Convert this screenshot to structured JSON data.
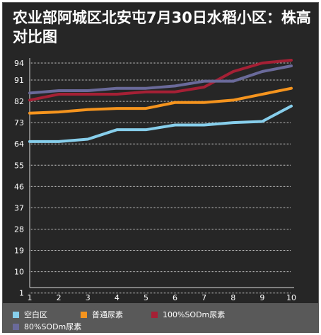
{
  "chart_data": {
    "type": "line",
    "title": "农业部阿城区北安屯7月30日水稻小区：株高对比图",
    "xlabel": "",
    "ylabel": "",
    "x": [
      1,
      2,
      3,
      4,
      5,
      6,
      7,
      8,
      9,
      10
    ],
    "y_ticks": [
      94,
      91,
      82,
      73,
      64,
      55,
      46,
      37,
      28,
      19,
      10,
      1
    ],
    "x_ticks": [
      1,
      2,
      3,
      4,
      5,
      6,
      7,
      8,
      9,
      10
    ],
    "grid": true,
    "legend_position": "bottom",
    "series": [
      {
        "name": "空白区",
        "color": "#87ceeb",
        "values": [
          65,
          65,
          66,
          70,
          70,
          72,
          72,
          73,
          73.5,
          80
        ]
      },
      {
        "name": "普通尿素",
        "color": "#f5941e",
        "values": [
          77,
          77.5,
          78.5,
          79,
          79,
          81.5,
          81.5,
          82.5,
          85,
          87.5
        ]
      },
      {
        "name": "100%SODm尿素",
        "color": "#a52035",
        "values": [
          82.5,
          85,
          85,
          85,
          86,
          86,
          88,
          92.5,
          94,
          94.5
        ]
      },
      {
        "name": "80%SODm尿素",
        "color": "#6a6a9a",
        "values": [
          85.5,
          86.5,
          86.5,
          87.5,
          87.5,
          88.5,
          90.5,
          90.5,
          92.5,
          93.5
        ]
      }
    ]
  }
}
